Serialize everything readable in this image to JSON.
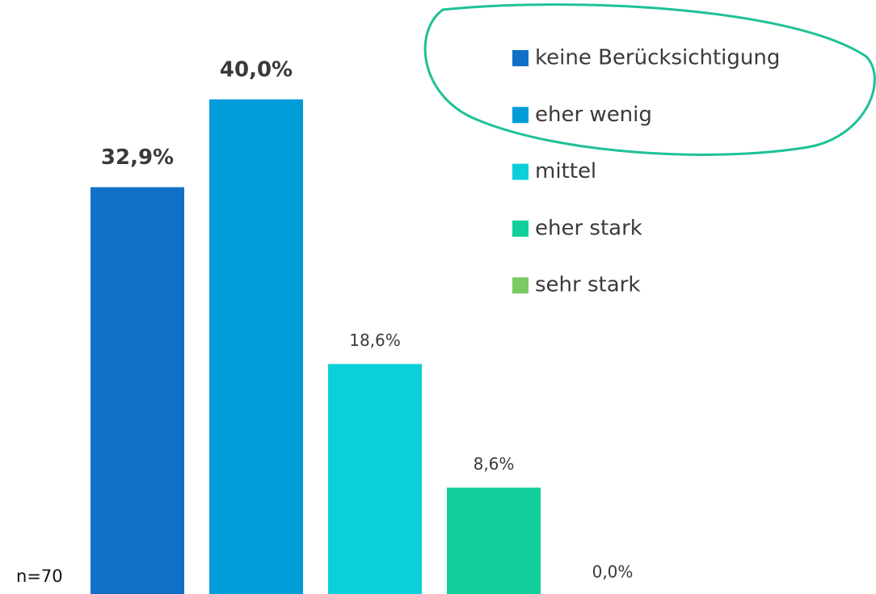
{
  "chart_data": {
    "type": "bar",
    "annotation": "n=70",
    "series": [
      {
        "name": "keine Berücksichtigung",
        "color": "#1170c8",
        "values": [
          32.9
        ],
        "value_labels": [
          "32,9%"
        ]
      },
      {
        "name": "eher wenig",
        "color": "#009dd9",
        "values": [
          40.0
        ],
        "value_labels": [
          "40,0%"
        ]
      },
      {
        "name": "mittel",
        "color": "#0bd0d9",
        "values": [
          18.6
        ],
        "value_labels": [
          "18,6%"
        ]
      },
      {
        "name": "eher stark",
        "color": "#10cf9b",
        "values": [
          8.6
        ],
        "value_labels": [
          "8,6%"
        ]
      },
      {
        "name": "sehr stark",
        "color": "#7cca62",
        "values": [
          0.0
        ],
        "value_labels": [
          "0,0%"
        ]
      }
    ]
  }
}
